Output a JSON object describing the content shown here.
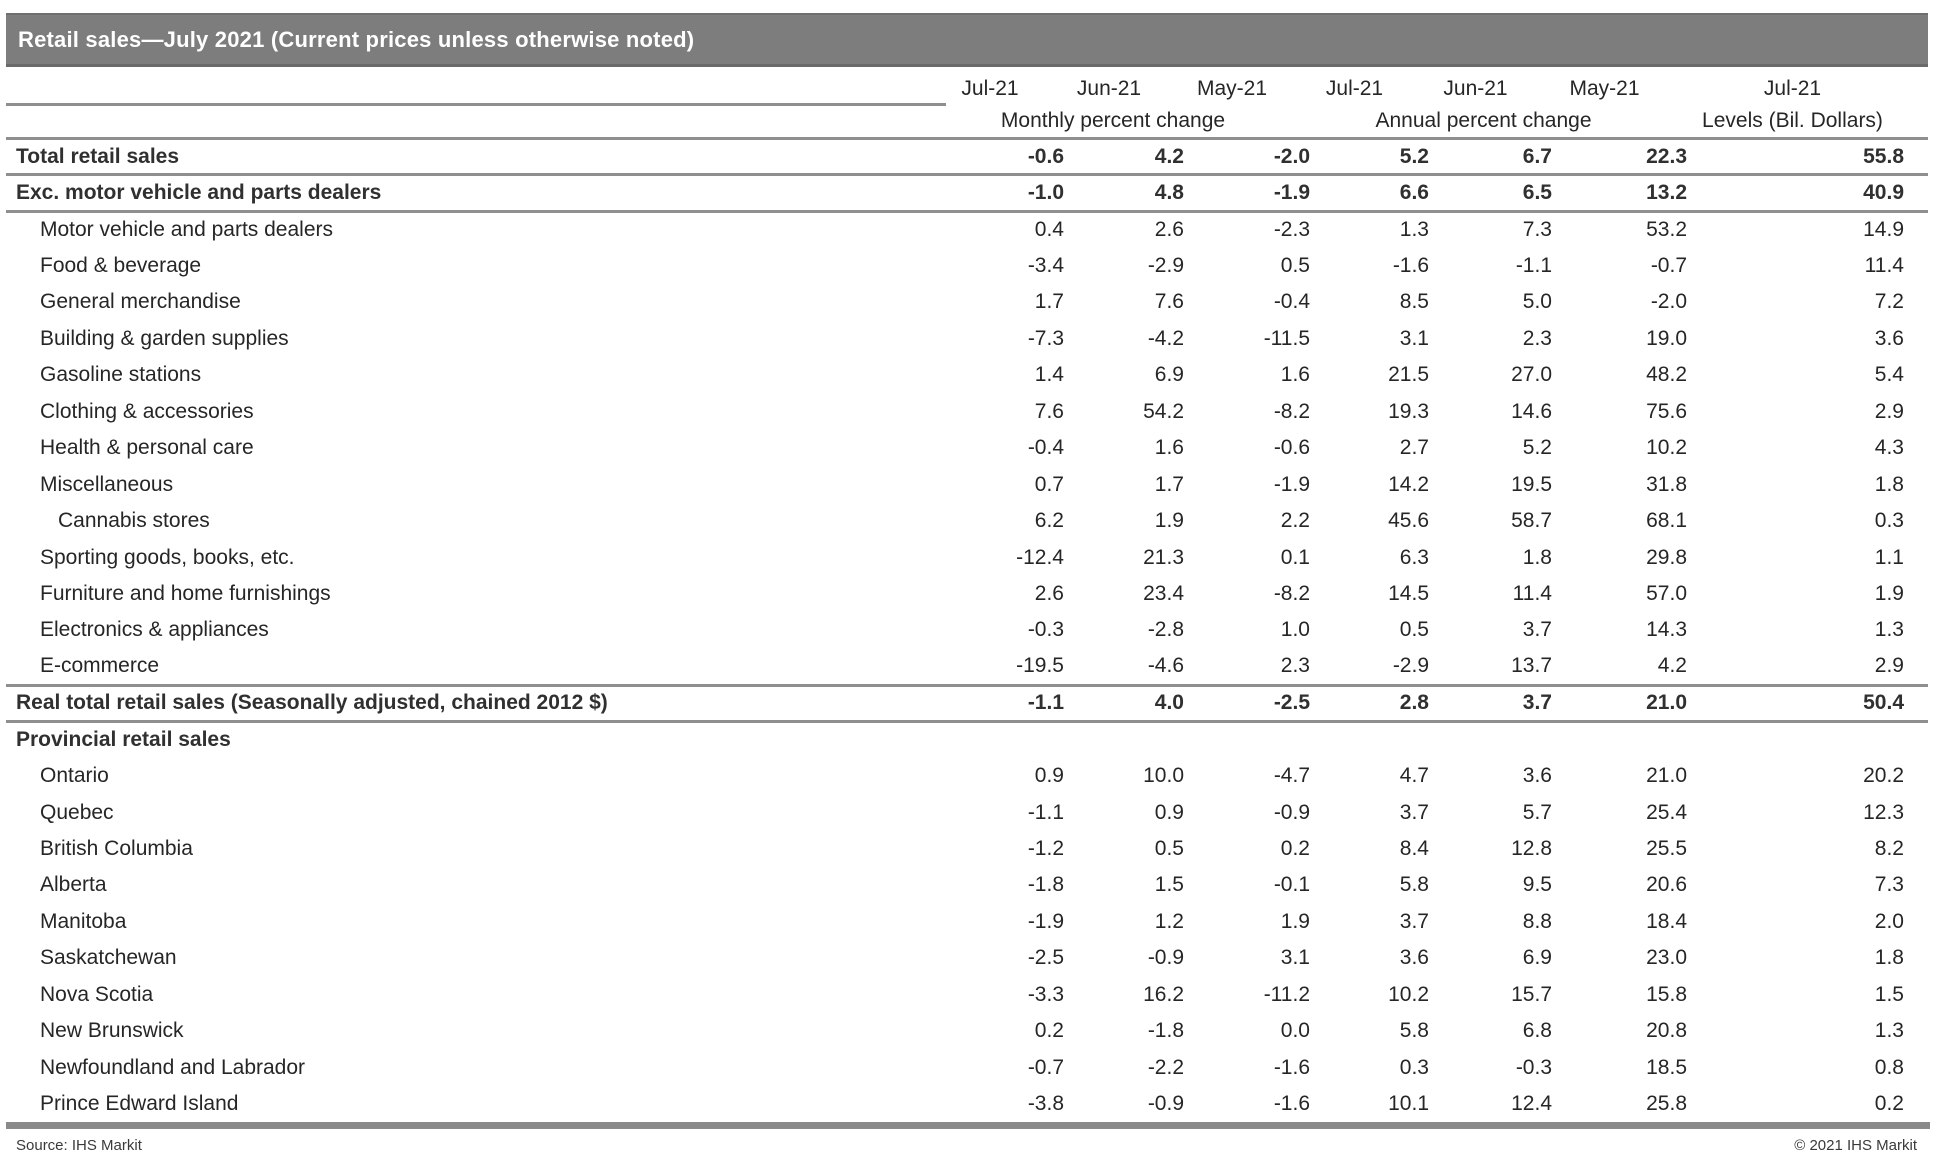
{
  "chart_data": {
    "type": "table",
    "title": "Retail sales—July 2021 (Current prices unless otherwise noted)",
    "columns": {
      "months": [
        "Jul-21",
        "Jun-21",
        "May-21",
        "Jul-21",
        "Jun-21",
        "May-21",
        "Jul-21"
      ],
      "groups": [
        "Monthly percent change",
        "Annual percent change",
        "Levels (Bil. Dollars)"
      ]
    },
    "rows": [
      {
        "label": "Total retail sales",
        "style": "bold",
        "indent": 0,
        "divider": true,
        "values": [
          "-0.6",
          "4.2",
          "-2.0",
          "5.2",
          "6.7",
          "22.3",
          "55.8"
        ]
      },
      {
        "label": "Exc. motor vehicle and parts dealers",
        "style": "bold",
        "indent": 0,
        "divider": true,
        "values": [
          "-1.0",
          "4.8",
          "-1.9",
          "6.6",
          "6.5",
          "13.2",
          "40.9"
        ]
      },
      {
        "label": "Motor vehicle and parts dealers",
        "style": "normal",
        "indent": 1,
        "divider": false,
        "values": [
          "0.4",
          "2.6",
          "-2.3",
          "1.3",
          "7.3",
          "53.2",
          "14.9"
        ]
      },
      {
        "label": "Food & beverage",
        "style": "normal",
        "indent": 1,
        "divider": false,
        "values": [
          "-3.4",
          "-2.9",
          "0.5",
          "-1.6",
          "-1.1",
          "-0.7",
          "11.4"
        ]
      },
      {
        "label": "General merchandise",
        "style": "normal",
        "indent": 1,
        "divider": false,
        "values": [
          "1.7",
          "7.6",
          "-0.4",
          "8.5",
          "5.0",
          "-2.0",
          "7.2"
        ]
      },
      {
        "label": "Building & garden supplies",
        "style": "normal",
        "indent": 1,
        "divider": false,
        "values": [
          "-7.3",
          "-4.2",
          "-11.5",
          "3.1",
          "2.3",
          "19.0",
          "3.6"
        ]
      },
      {
        "label": "Gasoline stations",
        "style": "normal",
        "indent": 1,
        "divider": false,
        "values": [
          "1.4",
          "6.9",
          "1.6",
          "21.5",
          "27.0",
          "48.2",
          "5.4"
        ]
      },
      {
        "label": "Clothing & accessories",
        "style": "normal",
        "indent": 1,
        "divider": false,
        "values": [
          "7.6",
          "54.2",
          "-8.2",
          "19.3",
          "14.6",
          "75.6",
          "2.9"
        ]
      },
      {
        "label": "Health & personal care",
        "style": "normal",
        "indent": 1,
        "divider": false,
        "values": [
          "-0.4",
          "1.6",
          "-0.6",
          "2.7",
          "5.2",
          "10.2",
          "4.3"
        ]
      },
      {
        "label": "Miscellaneous",
        "style": "normal",
        "indent": 1,
        "divider": false,
        "values": [
          "0.7",
          "1.7",
          "-1.9",
          "14.2",
          "19.5",
          "31.8",
          "1.8"
        ]
      },
      {
        "label": "Cannabis stores",
        "style": "normal",
        "indent": 2,
        "divider": false,
        "values": [
          "6.2",
          "1.9",
          "2.2",
          "45.6",
          "58.7",
          "68.1",
          "0.3"
        ]
      },
      {
        "label": "Sporting goods, books, etc.",
        "style": "normal",
        "indent": 1,
        "divider": false,
        "values": [
          "-12.4",
          "21.3",
          "0.1",
          "6.3",
          "1.8",
          "29.8",
          "1.1"
        ]
      },
      {
        "label": "Furniture and home furnishings",
        "style": "normal",
        "indent": 1,
        "divider": false,
        "values": [
          "2.6",
          "23.4",
          "-8.2",
          "14.5",
          "11.4",
          "57.0",
          "1.9"
        ]
      },
      {
        "label": "Electronics & appliances",
        "style": "normal",
        "indent": 1,
        "divider": false,
        "values": [
          "-0.3",
          "-2.8",
          "1.0",
          "0.5",
          "3.7",
          "14.3",
          "1.3"
        ]
      },
      {
        "label": "E-commerce",
        "style": "normal",
        "indent": 1,
        "divider": true,
        "values": [
          "-19.5",
          "-4.6",
          "2.3",
          "-2.9",
          "13.7",
          "4.2",
          "2.9"
        ]
      },
      {
        "label": "Real total retail sales (Seasonally adjusted, chained 2012 $)",
        "style": "bold",
        "indent": 0,
        "divider": true,
        "values": [
          "-1.1",
          "4.0",
          "-2.5",
          "2.8",
          "3.7",
          "21.0",
          "50.4"
        ]
      },
      {
        "label": "Provincial retail sales",
        "style": "bold",
        "indent": 0,
        "divider": false,
        "values": [
          "",
          "",
          "",
          "",
          "",
          "",
          ""
        ]
      },
      {
        "label": "Ontario",
        "style": "normal",
        "indent": 1,
        "divider": false,
        "values": [
          "0.9",
          "10.0",
          "-4.7",
          "4.7",
          "3.6",
          "21.0",
          "20.2"
        ]
      },
      {
        "label": "Quebec",
        "style": "normal",
        "indent": 1,
        "divider": false,
        "values": [
          "-1.1",
          "0.9",
          "-0.9",
          "3.7",
          "5.7",
          "25.4",
          "12.3"
        ]
      },
      {
        "label": "British Columbia",
        "style": "normal",
        "indent": 1,
        "divider": false,
        "values": [
          "-1.2",
          "0.5",
          "0.2",
          "8.4",
          "12.8",
          "25.5",
          "8.2"
        ]
      },
      {
        "label": "Alberta",
        "style": "normal",
        "indent": 1,
        "divider": false,
        "values": [
          "-1.8",
          "1.5",
          "-0.1",
          "5.8",
          "9.5",
          "20.6",
          "7.3"
        ]
      },
      {
        "label": "Manitoba",
        "style": "normal",
        "indent": 1,
        "divider": false,
        "values": [
          "-1.9",
          "1.2",
          "1.9",
          "3.7",
          "8.8",
          "18.4",
          "2.0"
        ]
      },
      {
        "label": "Saskatchewan",
        "style": "normal",
        "indent": 1,
        "divider": false,
        "values": [
          "-2.5",
          "-0.9",
          "3.1",
          "3.6",
          "6.9",
          "23.0",
          "1.8"
        ]
      },
      {
        "label": "Nova Scotia",
        "style": "normal",
        "indent": 1,
        "divider": false,
        "values": [
          "-3.3",
          "16.2",
          "-11.2",
          "10.2",
          "15.7",
          "15.8",
          "1.5"
        ]
      },
      {
        "label": "New Brunswick",
        "style": "normal",
        "indent": 1,
        "divider": false,
        "values": [
          "0.2",
          "-1.8",
          "0.0",
          "5.8",
          "6.8",
          "20.8",
          "1.3"
        ]
      },
      {
        "label": "Newfoundland and Labrador",
        "style": "normal",
        "indent": 1,
        "divider": false,
        "values": [
          "-0.7",
          "-2.2",
          "-1.6",
          "0.3",
          "-0.3",
          "18.5",
          "0.8"
        ]
      },
      {
        "label": "Prince Edward Island",
        "style": "normal",
        "indent": 1,
        "divider": false,
        "values": [
          "-3.8",
          "-0.9",
          "-1.6",
          "10.1",
          "12.4",
          "25.8",
          "0.2"
        ]
      }
    ]
  },
  "footer": {
    "source": "Source: IHS Markit",
    "copyright": "© 2021 IHS Markit"
  },
  "colors": {
    "title_bar_bg": "#7d7d7d",
    "title_text": "#ffffff",
    "rule_gray": "#8f8f8f",
    "body_text": "#262626"
  }
}
